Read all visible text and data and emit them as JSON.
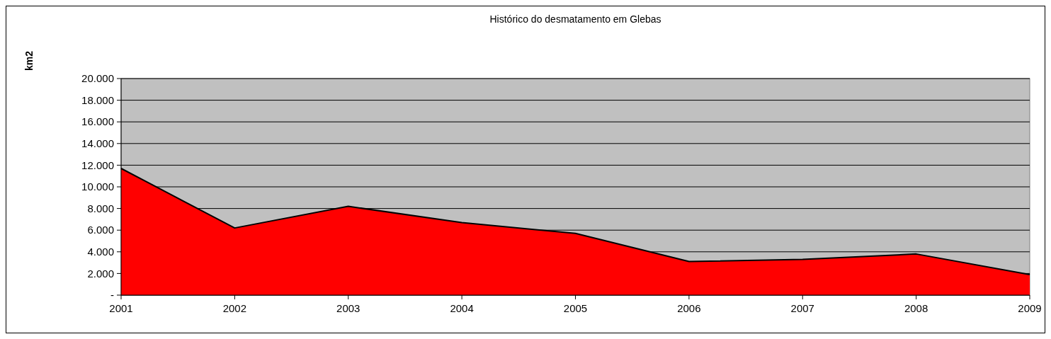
{
  "chart_data": {
    "type": "area",
    "title": "Histórico do desmatamento em Glebas",
    "ylabel": "km2",
    "categories": [
      "2001",
      "2002",
      "2003",
      "2004",
      "2005",
      "2006",
      "2007",
      "2008",
      "2009"
    ],
    "series": [
      {
        "color": "#ff0000",
        "values": [
          11700,
          6200,
          8200,
          6700,
          5700,
          3100,
          3300,
          3800,
          1900
        ]
      }
    ],
    "ylim": [
      0,
      20000
    ],
    "yticks": [
      {
        "value": 0,
        "label": "-"
      },
      {
        "value": 2000,
        "label": "2.000"
      },
      {
        "value": 4000,
        "label": "4.000"
      },
      {
        "value": 6000,
        "label": "6.000"
      },
      {
        "value": 8000,
        "label": "8.000"
      },
      {
        "value": 10000,
        "label": "10.000"
      },
      {
        "value": 12000,
        "label": "12.000"
      },
      {
        "value": 14000,
        "label": "14.000"
      },
      {
        "value": 16000,
        "label": "16.000"
      },
      {
        "value": 18000,
        "label": "18.000"
      },
      {
        "value": 20000,
        "label": "20.000"
      }
    ],
    "grid": "y"
  }
}
